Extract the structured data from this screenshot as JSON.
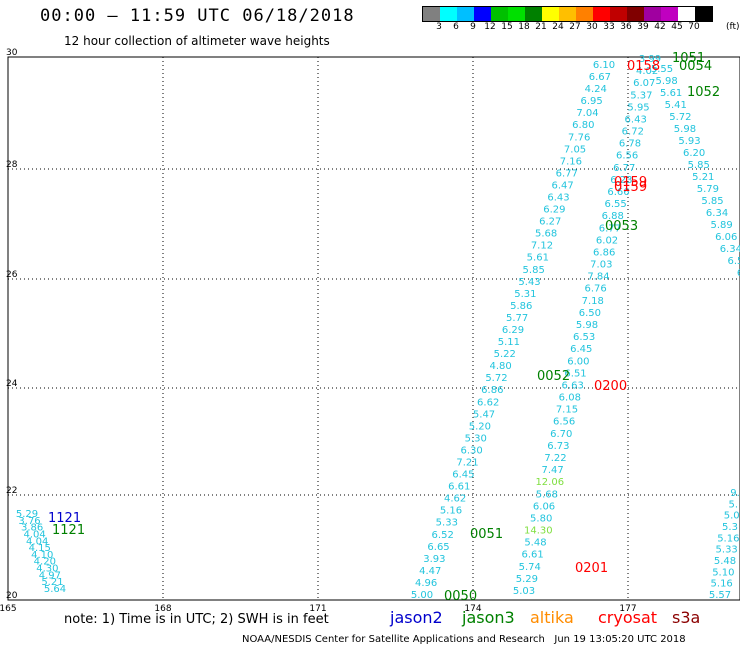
{
  "title": "00:00 – 11:59 UTC 06/18/2018",
  "subtitle": "12 hour collection of altimeter wave heights",
  "colorbar": {
    "colors": [
      "#808080",
      "#00ffff",
      "#00bfff",
      "#0000ff",
      "#00c000",
      "#00e000",
      "#008000",
      "#ffff00",
      "#ffbf00",
      "#ff8000",
      "#ff0000",
      "#c00000",
      "#800000",
      "#a000a0",
      "#c000c0",
      "#ffffff",
      "#000000"
    ],
    "labels": [
      "3",
      "6",
      "9",
      "12",
      "15",
      "18",
      "21",
      "24",
      "27",
      "30",
      "33",
      "36",
      "39",
      "42",
      "45",
      "70"
    ],
    "unit": "(ft)"
  },
  "axes": {
    "x_ticks": [
      "165",
      "168",
      "171",
      "174",
      "177"
    ],
    "y_ticks": [
      "30",
      "28",
      "26",
      "24",
      "22",
      "20"
    ]
  },
  "times": [
    {
      "text": "1121",
      "color": "#0000cc"
    },
    {
      "text": "1121",
      "color": "#008000"
    },
    {
      "text": "0050",
      "color": "#008000"
    },
    {
      "text": "0051",
      "color": "#008000"
    },
    {
      "text": "0052",
      "color": "#008000"
    },
    {
      "text": "0053",
      "color": "#008000"
    },
    {
      "text": "1051",
      "color": "#008000"
    },
    {
      "text": "0054",
      "color": "#008000"
    },
    {
      "text": "1052",
      "color": "#008000"
    },
    {
      "text": "0158",
      "color": "#ff0000"
    },
    {
      "text": "0159",
      "color": "#ff0000"
    },
    {
      "text": "0159",
      "color": "#ff0000"
    },
    {
      "text": "0200",
      "color": "#ff0000"
    },
    {
      "text": "0201",
      "color": "#ff0000"
    }
  ],
  "wave_tracks": [
    {
      "name": "west-track",
      "values": [
        "5.29",
        "3.76",
        "3.86",
        "4.04",
        "4.04",
        "4.15",
        "4.10",
        "4.20",
        "4.30",
        "4.97",
        "5.21",
        "5.64"
      ]
    },
    {
      "name": "track-a",
      "values": [
        "5.00",
        "4.96",
        "4.47",
        "3.93",
        "6.65",
        "6.52",
        "5.33",
        "5.16",
        "4.62",
        "6.61",
        "6.45",
        "7.21",
        "6.30",
        "5.30",
        "5.20",
        "5.47",
        "6.62",
        "6.86",
        "5.72",
        "4.80",
        "5.22",
        "5.11",
        "6.29",
        "5.77",
        "5.86",
        "5.31",
        "5.43",
        "5.85",
        "5.61",
        "7.12",
        "5.68",
        "6.27",
        "6.29",
        "6.43",
        "6.47",
        "6.77",
        "7.16",
        "7.05",
        "7.76",
        "6.80",
        "7.04",
        "6.95",
        "4.24",
        "6.67",
        "6.10"
      ]
    },
    {
      "name": "track-b",
      "values": [
        "5.03",
        "5.29",
        "5.74",
        "6.61",
        "5.48",
        "14.30",
        "5.80",
        "6.06",
        "5.68",
        "12.06",
        "7.47",
        "7.22",
        "6.73",
        "6.70",
        "6.56",
        "7.15",
        "6.08",
        "6.63",
        "6.51",
        "6.00",
        "6.45",
        "6.53",
        "5.98",
        "6.50",
        "7.18",
        "6.76",
        "7.84",
        "7.03",
        "6.86",
        "6.02",
        "6.77",
        "6.88",
        "6.55",
        "6.66",
        "6.23",
        "6.77",
        "6.56",
        "6.78",
        "6.72",
        "6.43",
        "5.95",
        "5.37",
        "6.07",
        "4.02",
        "3.99"
      ]
    },
    {
      "name": "track-c",
      "values": [
        "5.55",
        "5.98",
        "5.61",
        "5.41",
        "5.72",
        "5.98",
        "5.93",
        "6.20",
        "5.85",
        "5.21",
        "5.79",
        "5.85",
        "6.34",
        "5.89",
        "6.06",
        "6.34",
        "6.5",
        "6"
      ]
    },
    {
      "name": "track-d",
      "values": [
        "9.",
        "5.",
        "5.0",
        "5.3",
        "5.16",
        "5.33",
        "5.48",
        "5.10",
        "5.16",
        "5.57"
      ]
    }
  ],
  "note": "note: 1) Time is in UTC; 2) SWH is in feet",
  "legend": [
    {
      "label": "jason2",
      "color": "#0000cc"
    },
    {
      "label": "jason3",
      "color": "#008000"
    },
    {
      "label": "altika",
      "color": "#ff8c00"
    },
    {
      "label": "cryosat",
      "color": "#ff0000"
    },
    {
      "label": "s3a",
      "color": "#8b0000"
    }
  ],
  "footer": "NOAA/NESDIS Center for Satellite Applications and Research   Jun 19 13:05:20 UTC 2018"
}
